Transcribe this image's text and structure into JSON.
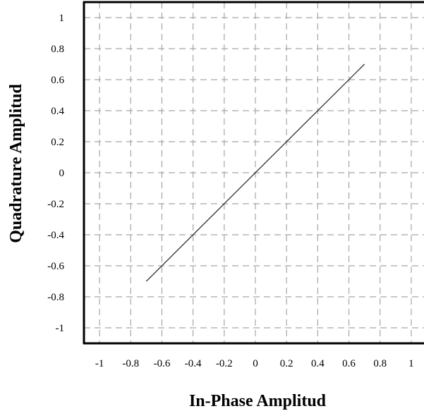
{
  "chart_data": {
    "type": "line",
    "xlabel": "In-Phase Amplitud",
    "ylabel": "Quadrature Amplitud",
    "xlim": [
      -1.1,
      1.1
    ],
    "ylim": [
      -1.1,
      1.1
    ],
    "x_ticks": [
      -1,
      -0.8,
      -0.6,
      -0.4,
      -0.2,
      0,
      0.2,
      0.4,
      0.6,
      0.8,
      1
    ],
    "x_tick_labels": [
      "-1",
      "-0.8",
      "-0.6",
      "-0.4",
      "-0.2",
      "0",
      "0.2",
      "0.4",
      "0.6",
      "0.8",
      "1"
    ],
    "y_ticks": [
      1,
      0.8,
      0.6,
      0.4,
      0.2,
      0,
      -0.2,
      -0.4,
      -0.6,
      -0.8,
      -1
    ],
    "y_tick_labels": [
      "1",
      "0.8",
      "0.6",
      "0.4",
      "0.2",
      "0",
      "-0.2",
      "-0.4",
      "-0.6",
      "-0.8",
      "-1"
    ],
    "grid": true,
    "grid_style": "dashed",
    "series": [
      {
        "x": [
          -0.7,
          0.7
        ],
        "y": [
          -0.7,
          0.7
        ],
        "color": "#333333"
      }
    ]
  }
}
